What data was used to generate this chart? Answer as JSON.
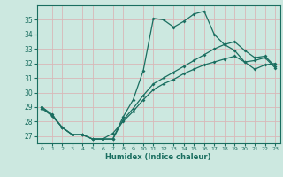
{
  "xlabel": "Humidex (Indice chaleur)",
  "bg_color": "#cce8e0",
  "line_color": "#1a6e60",
  "grid_color": "#b8d8d0",
  "xlim": [
    -0.5,
    23.5
  ],
  "ylim": [
    26.5,
    36.0
  ],
  "yticks": [
    27,
    28,
    29,
    30,
    31,
    32,
    33,
    34,
    35
  ],
  "xticks": [
    0,
    1,
    2,
    3,
    4,
    5,
    6,
    7,
    8,
    9,
    10,
    11,
    12,
    13,
    14,
    15,
    16,
    17,
    18,
    19,
    20,
    21,
    22,
    23
  ],
  "series1_x": [
    0,
    1,
    2,
    3,
    4,
    5,
    6,
    7,
    8,
    9,
    10,
    11,
    12,
    13,
    14,
    15,
    16,
    17,
    18,
    19,
    20,
    21,
    22,
    23
  ],
  "series1_y": [
    29.0,
    28.5,
    27.6,
    27.1,
    27.1,
    26.8,
    26.8,
    26.8,
    28.3,
    29.5,
    31.5,
    35.1,
    35.0,
    34.5,
    34.9,
    35.4,
    35.6,
    34.0,
    33.3,
    32.9,
    32.1,
    32.2,
    32.4,
    31.7
  ],
  "series2_x": [
    0,
    1,
    2,
    3,
    4,
    5,
    6,
    7,
    8,
    9,
    10,
    11,
    12,
    13,
    14,
    15,
    16,
    17,
    18,
    19,
    20,
    21,
    22,
    23
  ],
  "series2_y": [
    29.0,
    28.4,
    27.6,
    27.1,
    27.1,
    26.8,
    26.8,
    26.8,
    28.1,
    28.9,
    29.8,
    30.6,
    31.0,
    31.4,
    31.8,
    32.2,
    32.6,
    33.0,
    33.3,
    33.5,
    32.9,
    32.4,
    32.5,
    31.8
  ],
  "series3_x": [
    0,
    1,
    2,
    3,
    4,
    5,
    6,
    7,
    8,
    9,
    10,
    11,
    12,
    13,
    14,
    15,
    16,
    17,
    18,
    19,
    20,
    21,
    22,
    23
  ],
  "series3_y": [
    28.9,
    28.4,
    27.6,
    27.1,
    27.1,
    26.8,
    26.8,
    27.2,
    28.0,
    28.7,
    29.5,
    30.2,
    30.6,
    30.9,
    31.3,
    31.6,
    31.9,
    32.1,
    32.3,
    32.5,
    32.1,
    31.6,
    31.9,
    32.0
  ]
}
